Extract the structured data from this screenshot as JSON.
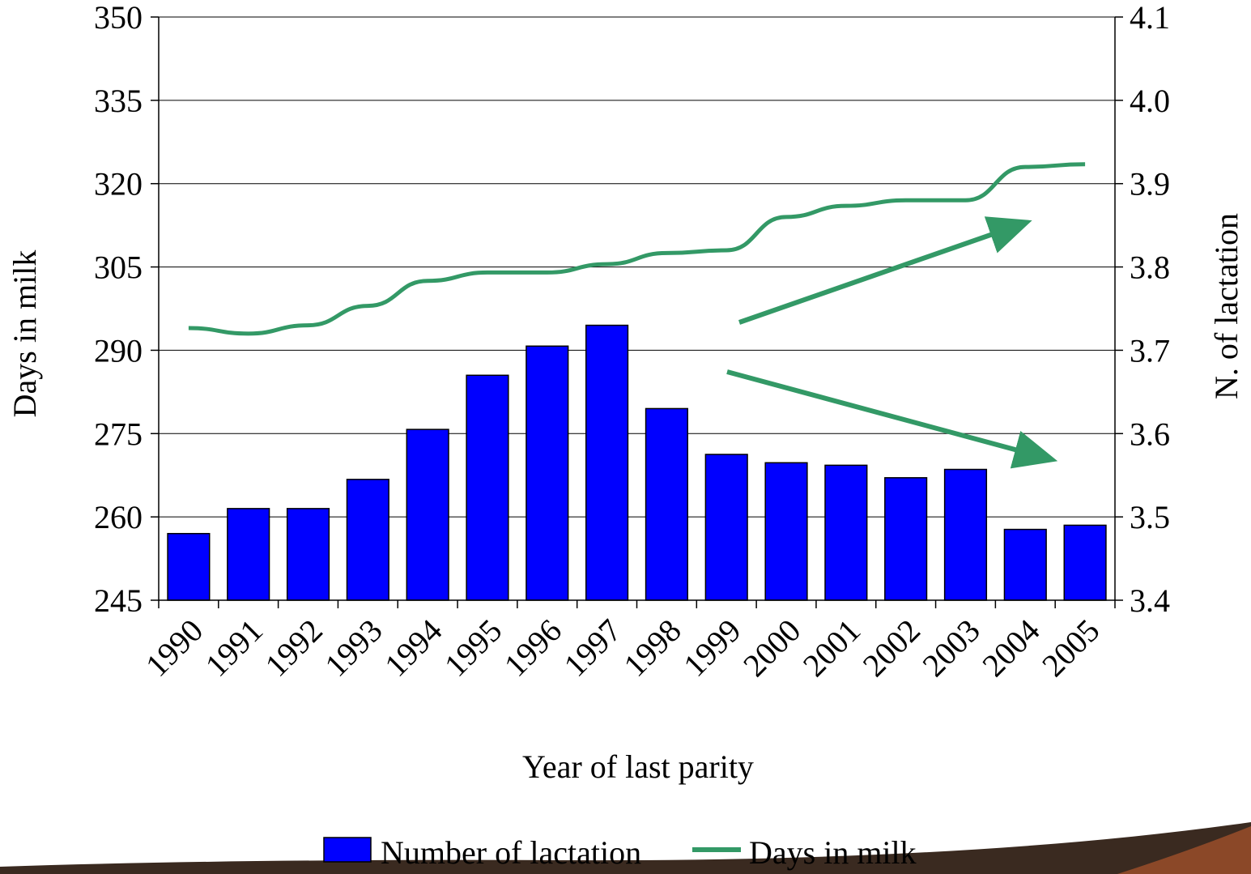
{
  "chart_data": {
    "type": "bar",
    "categories": [
      "1990",
      "1991",
      "1992",
      "1993",
      "1994",
      "1995",
      "1996",
      "1997",
      "1998",
      "1999",
      "2000",
      "2001",
      "2002",
      "2003",
      "2004",
      "2005"
    ],
    "series": [
      {
        "name": "Number of lactation",
        "type": "bar",
        "axis": "right",
        "color": "#0000ff",
        "values": [
          3.48,
          3.51,
          3.51,
          3.545,
          3.605,
          3.67,
          3.705,
          3.73,
          3.63,
          3.575,
          3.565,
          3.562,
          3.547,
          3.557,
          3.485,
          3.49
        ]
      },
      {
        "name": "Days in milk",
        "type": "line",
        "axis": "left",
        "color": "#339966",
        "values": [
          294,
          293,
          294.5,
          298,
          302.5,
          304,
          304,
          305.5,
          307.5,
          308,
          314,
          316,
          317,
          317,
          323,
          323.5
        ]
      }
    ],
    "xlabel": "Year of last parity",
    "ylabel": "Days in milk",
    "y2label": "N. of lactation",
    "ylim": [
      245,
      350
    ],
    "yticks": [
      245,
      260,
      275,
      290,
      305,
      320,
      335,
      350
    ],
    "y2lim": [
      3.4,
      4.1
    ],
    "y2ticks": [
      "3.4",
      "3.5",
      "3.6",
      "3.7",
      "3.8",
      "3.9",
      "4.0",
      "4.1"
    ],
    "grid": true,
    "legend_position": "bottom",
    "annotations": [
      {
        "type": "trend-arrow",
        "direction": "up",
        "color": "#339966"
      },
      {
        "type": "trend-arrow",
        "direction": "down",
        "color": "#339966"
      }
    ]
  }
}
